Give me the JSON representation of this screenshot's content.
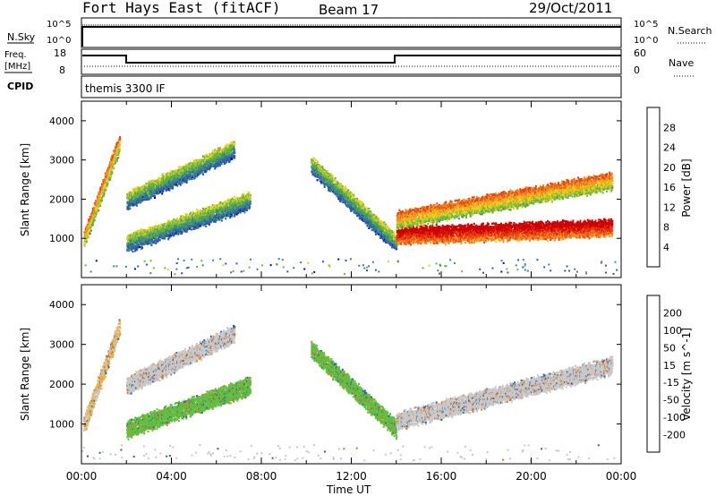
{
  "header": {
    "station": "Fort Hays East (fitACF)",
    "beam": "Beam 17",
    "date": "29/Oct/2011"
  },
  "panels": {
    "top": {
      "left_label": "N.Sky",
      "left_ticks": [
        "10^5",
        "10^0"
      ],
      "right_label": "N.Search",
      "right_ticks": [
        "10^5",
        "10^0"
      ]
    },
    "freq": {
      "left_label_1": "Freq.",
      "left_label_2": "[MHz]",
      "left_ticks": [
        "18",
        "8"
      ],
      "right_label": "Nave",
      "right_ticks": [
        "60",
        "0"
      ]
    },
    "cpid": {
      "label": "CPID",
      "value": "themis 3300 IF"
    }
  },
  "chart_data": [
    {
      "type": "heatmap",
      "name": "power",
      "ylabel": "Slant Range [km]",
      "xlabel": "Time UT",
      "x_ticks": [
        "00:00",
        "04:00",
        "08:00",
        "12:00",
        "16:00",
        "20:00",
        "00:00"
      ],
      "y_ticks": [
        1000,
        2000,
        3000,
        4000
      ],
      "ylim": [
        0,
        4500
      ],
      "xlim_hours": [
        0,
        24
      ],
      "colorbar": {
        "label": "Power [dB]",
        "ticks": [
          4,
          8,
          12,
          16,
          20,
          24,
          28
        ],
        "colors": [
          "#0000cc",
          "#2d56b0",
          "#3a8a80",
          "#66b83a",
          "#e8d020",
          "#f09020",
          "#e84010",
          "#d00000"
        ]
      },
      "echo_bands": [
        {
          "t_start": 0.1,
          "t_end": 1.7,
          "r_start": 1000,
          "r_end": 3500,
          "dB": 20
        },
        {
          "t_start": 2.0,
          "t_end": 6.8,
          "r_start": 2000,
          "r_end": 3300,
          "dB": 12
        },
        {
          "t_start": 2.0,
          "t_end": 7.5,
          "r_start": 900,
          "r_end": 2000,
          "dB": 12
        },
        {
          "t_start": 10.2,
          "t_end": 14.0,
          "r_start": 2900,
          "r_end": 900,
          "dB": 12
        },
        {
          "t_start": 14.0,
          "t_end": 23.6,
          "r_start": 1100,
          "r_end": 1300,
          "dB": 28
        },
        {
          "t_start": 14.0,
          "t_end": 23.6,
          "r_start": 1500,
          "r_end": 2500,
          "dB": 20
        }
      ]
    },
    {
      "type": "heatmap",
      "name": "velocity",
      "ylabel": "Slant Range [km]",
      "xlabel": "Time UT",
      "x_ticks": [
        "00:00",
        "04:00",
        "08:00",
        "12:00",
        "16:00",
        "20:00",
        "00:00"
      ],
      "y_ticks": [
        1000,
        2000,
        3000,
        4000
      ],
      "ylim": [
        0,
        4500
      ],
      "xlim_hours": [
        0,
        24
      ],
      "colorbar": {
        "label": "Velocity [m s^-1]",
        "ticks": [
          200,
          100,
          50,
          15,
          -15,
          -50,
          -100,
          -200
        ],
        "colors": [
          "#2040c0",
          "#3060a0",
          "#2a8a5a",
          "#60c040",
          "#c8c8c8",
          "#f0b030",
          "#f07010",
          "#e82010",
          "#e00000"
        ]
      },
      "echo_bands": [
        {
          "t_start": 0.1,
          "t_end": 1.7,
          "r_start": 1000,
          "r_end": 3500,
          "vel": -15
        },
        {
          "t_start": 2.0,
          "t_end": 6.8,
          "r_start": 2000,
          "r_end": 3300,
          "vel": 0
        },
        {
          "t_start": 2.0,
          "t_end": 7.5,
          "r_start": 900,
          "r_end": 2000,
          "vel": 30
        },
        {
          "t_start": 10.2,
          "t_end": 14.0,
          "r_start": 2900,
          "r_end": 900,
          "vel": 40
        },
        {
          "t_start": 14.0,
          "t_end": 23.6,
          "r_start": 1100,
          "r_end": 2500,
          "vel": 0
        }
      ]
    }
  ]
}
